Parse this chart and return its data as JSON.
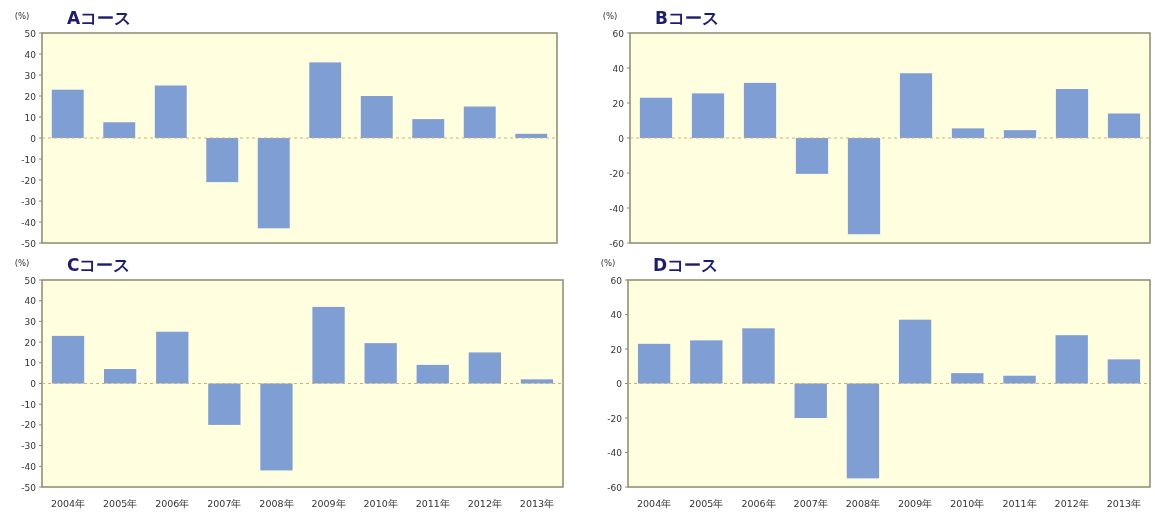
{
  "chart_data": [
    {
      "type": "bar",
      "title": "Aコース",
      "ylabel": "(%)",
      "categories": [
        null,
        null,
        null,
        null,
        null,
        null,
        null,
        null,
        null,
        null
      ],
      "color": "#7f9fd4",
      "ylim": [
        -50,
        50
      ],
      "yticks": [
        -50,
        -40,
        -30,
        -20,
        -10,
        0,
        10,
        20,
        30,
        40,
        50
      ],
      "ref_lines": [
        {
          "axis": "y",
          "value": 0,
          "color": "#c8b478",
          "line_style": "dashed"
        }
      ],
      "values": [
        23,
        7.5,
        25,
        -21,
        -43,
        36,
        20,
        9,
        15,
        2
      ]
    },
    {
      "type": "bar",
      "title": "Bコース",
      "ylabel": "(%)",
      "categories": [
        null,
        null,
        null,
        null,
        null,
        null,
        null,
        null,
        null,
        null
      ],
      "color": "#7f9fd4",
      "ylim": [
        -60,
        60
      ],
      "yticks": [
        -60,
        -40,
        -20,
        0,
        20,
        40,
        60
      ],
      "ref_lines": [
        {
          "axis": "y",
          "value": 0,
          "color": "#c8b478",
          "line_style": "dashed"
        }
      ],
      "values": [
        23,
        25.5,
        31.5,
        -20.5,
        -55,
        37,
        5.5,
        4.5,
        28,
        14
      ]
    },
    {
      "type": "bar",
      "title": "Cコース",
      "ylabel": "(%)",
      "categories": [
        "2004年",
        "2005年",
        "2006年",
        "2007年",
        "2008年",
        "2009年",
        "2010年",
        "2011年",
        "2012年",
        "2013年"
      ],
      "color": "#7f9fd4",
      "ylim": [
        -50,
        50
      ],
      "yticks": [
        -50,
        -40,
        -30,
        -20,
        -10,
        0,
        10,
        20,
        30,
        40,
        50
      ],
      "ref_lines": [
        {
          "axis": "y",
          "value": 0,
          "color": "#c8b478",
          "line_style": "dashed"
        }
      ],
      "values": [
        23,
        7,
        25,
        -20,
        -42,
        37,
        19.5,
        9,
        15,
        2
      ]
    },
    {
      "type": "bar",
      "title": "Dコース",
      "ylabel": "(%)",
      "categories": [
        "2004年",
        "2005年",
        "2006年",
        "2007年",
        "2008年",
        "2009年",
        "2010年",
        "2011年",
        "2012年",
        "2013年"
      ],
      "color": "#7f9fd4",
      "ylim": [
        -60,
        60
      ],
      "yticks": [
        -60,
        -40,
        -20,
        0,
        20,
        40,
        60
      ],
      "ref_lines": [
        {
          "axis": "y",
          "value": 0,
          "color": "#c8b478",
          "line_style": "dashed"
        }
      ],
      "values": [
        23,
        25,
        32,
        -20,
        -55,
        37,
        6,
        4.5,
        28,
        14
      ]
    }
  ]
}
